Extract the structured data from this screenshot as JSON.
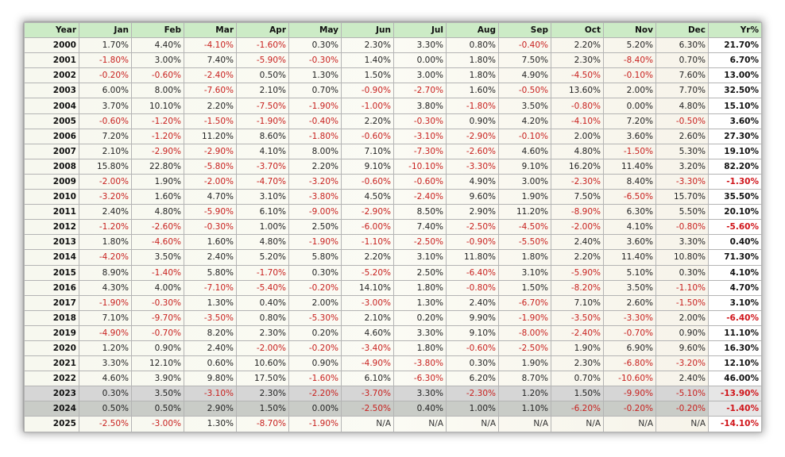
{
  "table": {
    "headers": [
      "Year",
      "Jan",
      "Feb",
      "Mar",
      "Apr",
      "May",
      "Jun",
      "Jul",
      "Aug",
      "Sep",
      "Oct",
      "Nov",
      "Dec",
      "Yr%"
    ],
    "rows": [
      {
        "year": "2000",
        "cells": [
          "1.70%",
          "4.40%",
          "-4.10%",
          "-1.60%",
          "0.30%",
          "2.30%",
          "3.30%",
          "0.80%",
          "-0.40%",
          "2.20%",
          "5.20%",
          "6.30%",
          "21.70%"
        ]
      },
      {
        "year": "2001",
        "cells": [
          "-1.80%",
          "3.00%",
          "7.40%",
          "-5.90%",
          "-0.30%",
          "1.40%",
          "0.00%",
          "1.80%",
          "7.50%",
          "2.30%",
          "-8.40%",
          "0.70%",
          "6.70%"
        ]
      },
      {
        "year": "2002",
        "cells": [
          "-0.20%",
          "-0.60%",
          "-2.40%",
          "0.50%",
          "1.30%",
          "1.50%",
          "3.00%",
          "1.80%",
          "4.90%",
          "-4.50%",
          "-0.10%",
          "7.60%",
          "13.00%"
        ]
      },
      {
        "year": "2003",
        "cells": [
          "6.00%",
          "8.00%",
          "-7.60%",
          "2.10%",
          "0.70%",
          "-0.90%",
          "-2.70%",
          "1.60%",
          "-0.50%",
          "13.60%",
          "2.00%",
          "7.70%",
          "32.50%"
        ]
      },
      {
        "year": "2004",
        "cells": [
          "3.70%",
          "10.10%",
          "2.20%",
          "-7.50%",
          "-1.90%",
          "-1.00%",
          "3.80%",
          "-1.80%",
          "3.50%",
          "-0.80%",
          "0.00%",
          "4.80%",
          "15.10%"
        ]
      },
      {
        "year": "2005",
        "cells": [
          "-0.60%",
          "-1.20%",
          "-1.50%",
          "-1.90%",
          "-0.40%",
          "2.20%",
          "-0.30%",
          "0.90%",
          "4.20%",
          "-4.10%",
          "7.20%",
          "-0.50%",
          "3.60%"
        ]
      },
      {
        "year": "2006",
        "cells": [
          "7.20%",
          "-1.20%",
          "11.20%",
          "8.60%",
          "-1.80%",
          "-0.60%",
          "-3.10%",
          "-2.90%",
          "-0.10%",
          "2.00%",
          "3.60%",
          "2.60%",
          "27.30%"
        ]
      },
      {
        "year": "2007",
        "cells": [
          "2.10%",
          "-2.90%",
          "-2.90%",
          "4.10%",
          "8.00%",
          "7.10%",
          "-7.30%",
          "-2.60%",
          "4.60%",
          "4.80%",
          "-1.50%",
          "5.30%",
          "19.10%"
        ]
      },
      {
        "year": "2008",
        "cells": [
          "15.80%",
          "22.80%",
          "-5.80%",
          "-3.70%",
          "2.20%",
          "9.10%",
          "-10.10%",
          "-3.30%",
          "9.10%",
          "16.20%",
          "11.40%",
          "3.20%",
          "82.20%"
        ]
      },
      {
        "year": "2009",
        "cells": [
          "-2.00%",
          "1.90%",
          "-2.00%",
          "-4.70%",
          "-3.20%",
          "-0.60%",
          "-0.60%",
          "4.90%",
          "3.00%",
          "-2.30%",
          "8.40%",
          "-3.30%",
          "-1.30%"
        ]
      },
      {
        "year": "2010",
        "cells": [
          "-3.20%",
          "1.60%",
          "4.70%",
          "3.10%",
          "-3.80%",
          "4.50%",
          "-2.40%",
          "9.60%",
          "1.90%",
          "7.50%",
          "-6.50%",
          "15.70%",
          "35.50%"
        ]
      },
      {
        "year": "2011",
        "cells": [
          "2.40%",
          "4.80%",
          "-5.90%",
          "6.10%",
          "-9.00%",
          "-2.90%",
          "8.50%",
          "2.90%",
          "11.20%",
          "-8.90%",
          "6.30%",
          "5.50%",
          "20.10%"
        ]
      },
      {
        "year": "2012",
        "cells": [
          "-1.20%",
          "-2.60%",
          "-0.30%",
          "1.00%",
          "2.50%",
          "-6.00%",
          "7.40%",
          "-2.50%",
          "-4.50%",
          "-2.00%",
          "4.10%",
          "-0.80%",
          "-5.60%"
        ]
      },
      {
        "year": "2013",
        "cells": [
          "1.80%",
          "-4.60%",
          "1.60%",
          "4.80%",
          "-1.90%",
          "-1.10%",
          "-2.50%",
          "-0.90%",
          "-5.50%",
          "2.40%",
          "3.60%",
          "3.30%",
          "0.40%"
        ]
      },
      {
        "year": "2014",
        "cells": [
          "-4.20%",
          "3.50%",
          "2.40%",
          "5.20%",
          "5.80%",
          "2.20%",
          "3.10%",
          "11.80%",
          "1.80%",
          "2.20%",
          "11.40%",
          "10.80%",
          "71.30%"
        ]
      },
      {
        "year": "2015",
        "cells": [
          "8.90%",
          "-1.40%",
          "5.80%",
          "-1.70%",
          "0.30%",
          "-5.20%",
          "2.50%",
          "-6.40%",
          "3.10%",
          "-5.90%",
          "5.10%",
          "0.30%",
          "4.10%"
        ]
      },
      {
        "year": "2016",
        "cells": [
          "4.30%",
          "4.00%",
          "-7.10%",
          "-5.40%",
          "-0.20%",
          "14.10%",
          "1.80%",
          "-0.80%",
          "1.50%",
          "-8.20%",
          "3.50%",
          "-1.10%",
          "4.70%"
        ]
      },
      {
        "year": "2017",
        "cells": [
          "-1.90%",
          "-0.30%",
          "1.30%",
          "0.40%",
          "2.00%",
          "-3.00%",
          "1.30%",
          "2.40%",
          "-6.70%",
          "7.10%",
          "2.60%",
          "-1.50%",
          "3.10%"
        ]
      },
      {
        "year": "2018",
        "cells": [
          "7.10%",
          "-9.70%",
          "-3.50%",
          "0.80%",
          "-5.30%",
          "2.10%",
          "0.20%",
          "9.90%",
          "-1.90%",
          "-3.50%",
          "-3.30%",
          "2.00%",
          "-6.40%"
        ]
      },
      {
        "year": "2019",
        "cells": [
          "-4.90%",
          "-0.70%",
          "8.20%",
          "2.30%",
          "0.20%",
          "4.60%",
          "3.30%",
          "9.10%",
          "-8.00%",
          "-2.40%",
          "-0.70%",
          "0.90%",
          "11.10%"
        ]
      },
      {
        "year": "2020",
        "cells": [
          "1.20%",
          "0.90%",
          "2.40%",
          "-2.00%",
          "-0.20%",
          "-3.40%",
          "1.80%",
          "-0.60%",
          "-2.50%",
          "1.90%",
          "6.90%",
          "9.60%",
          "16.30%"
        ]
      },
      {
        "year": "2021",
        "cells": [
          "3.30%",
          "12.10%",
          "0.60%",
          "10.60%",
          "0.90%",
          "-4.90%",
          "-3.80%",
          "0.30%",
          "1.90%",
          "2.30%",
          "-6.80%",
          "-3.20%",
          "12.10%"
        ]
      },
      {
        "year": "2022",
        "cells": [
          "4.60%",
          "3.90%",
          "9.80%",
          "17.50%",
          "-1.60%",
          "6.10%",
          "-6.30%",
          "6.20%",
          "8.70%",
          "0.70%",
          "-10.60%",
          "2.40%",
          "46.00%"
        ]
      },
      {
        "year": "2023",
        "shade": "shade",
        "cells": [
          "0.30%",
          "3.50%",
          "-3.10%",
          "2.30%",
          "-2.20%",
          "-3.70%",
          "3.30%",
          "-2.30%",
          "1.20%",
          "1.50%",
          "-9.90%",
          "-5.10%",
          "-13.90%"
        ]
      },
      {
        "year": "2024",
        "shade": "shade-dark",
        "cells": [
          "0.50%",
          "0.50%",
          "2.90%",
          "1.50%",
          "0.00%",
          "-2.50%",
          "0.40%",
          "1.00%",
          "1.10%",
          "-6.20%",
          "-0.20%",
          "-0.20%",
          "-1.40%"
        ]
      },
      {
        "year": "2025",
        "shade": "",
        "cells": [
          "-2.50%",
          "-3.00%",
          "1.30%",
          "-8.70%",
          "-1.90%",
          "N/A",
          "N/A",
          "N/A",
          "N/A",
          "N/A",
          "N/A",
          "N/A",
          "-14.10%"
        ]
      }
    ]
  },
  "colors": {
    "header_bg": "#ccebc6",
    "negative": "#c8201e",
    "positive": "#222222"
  }
}
